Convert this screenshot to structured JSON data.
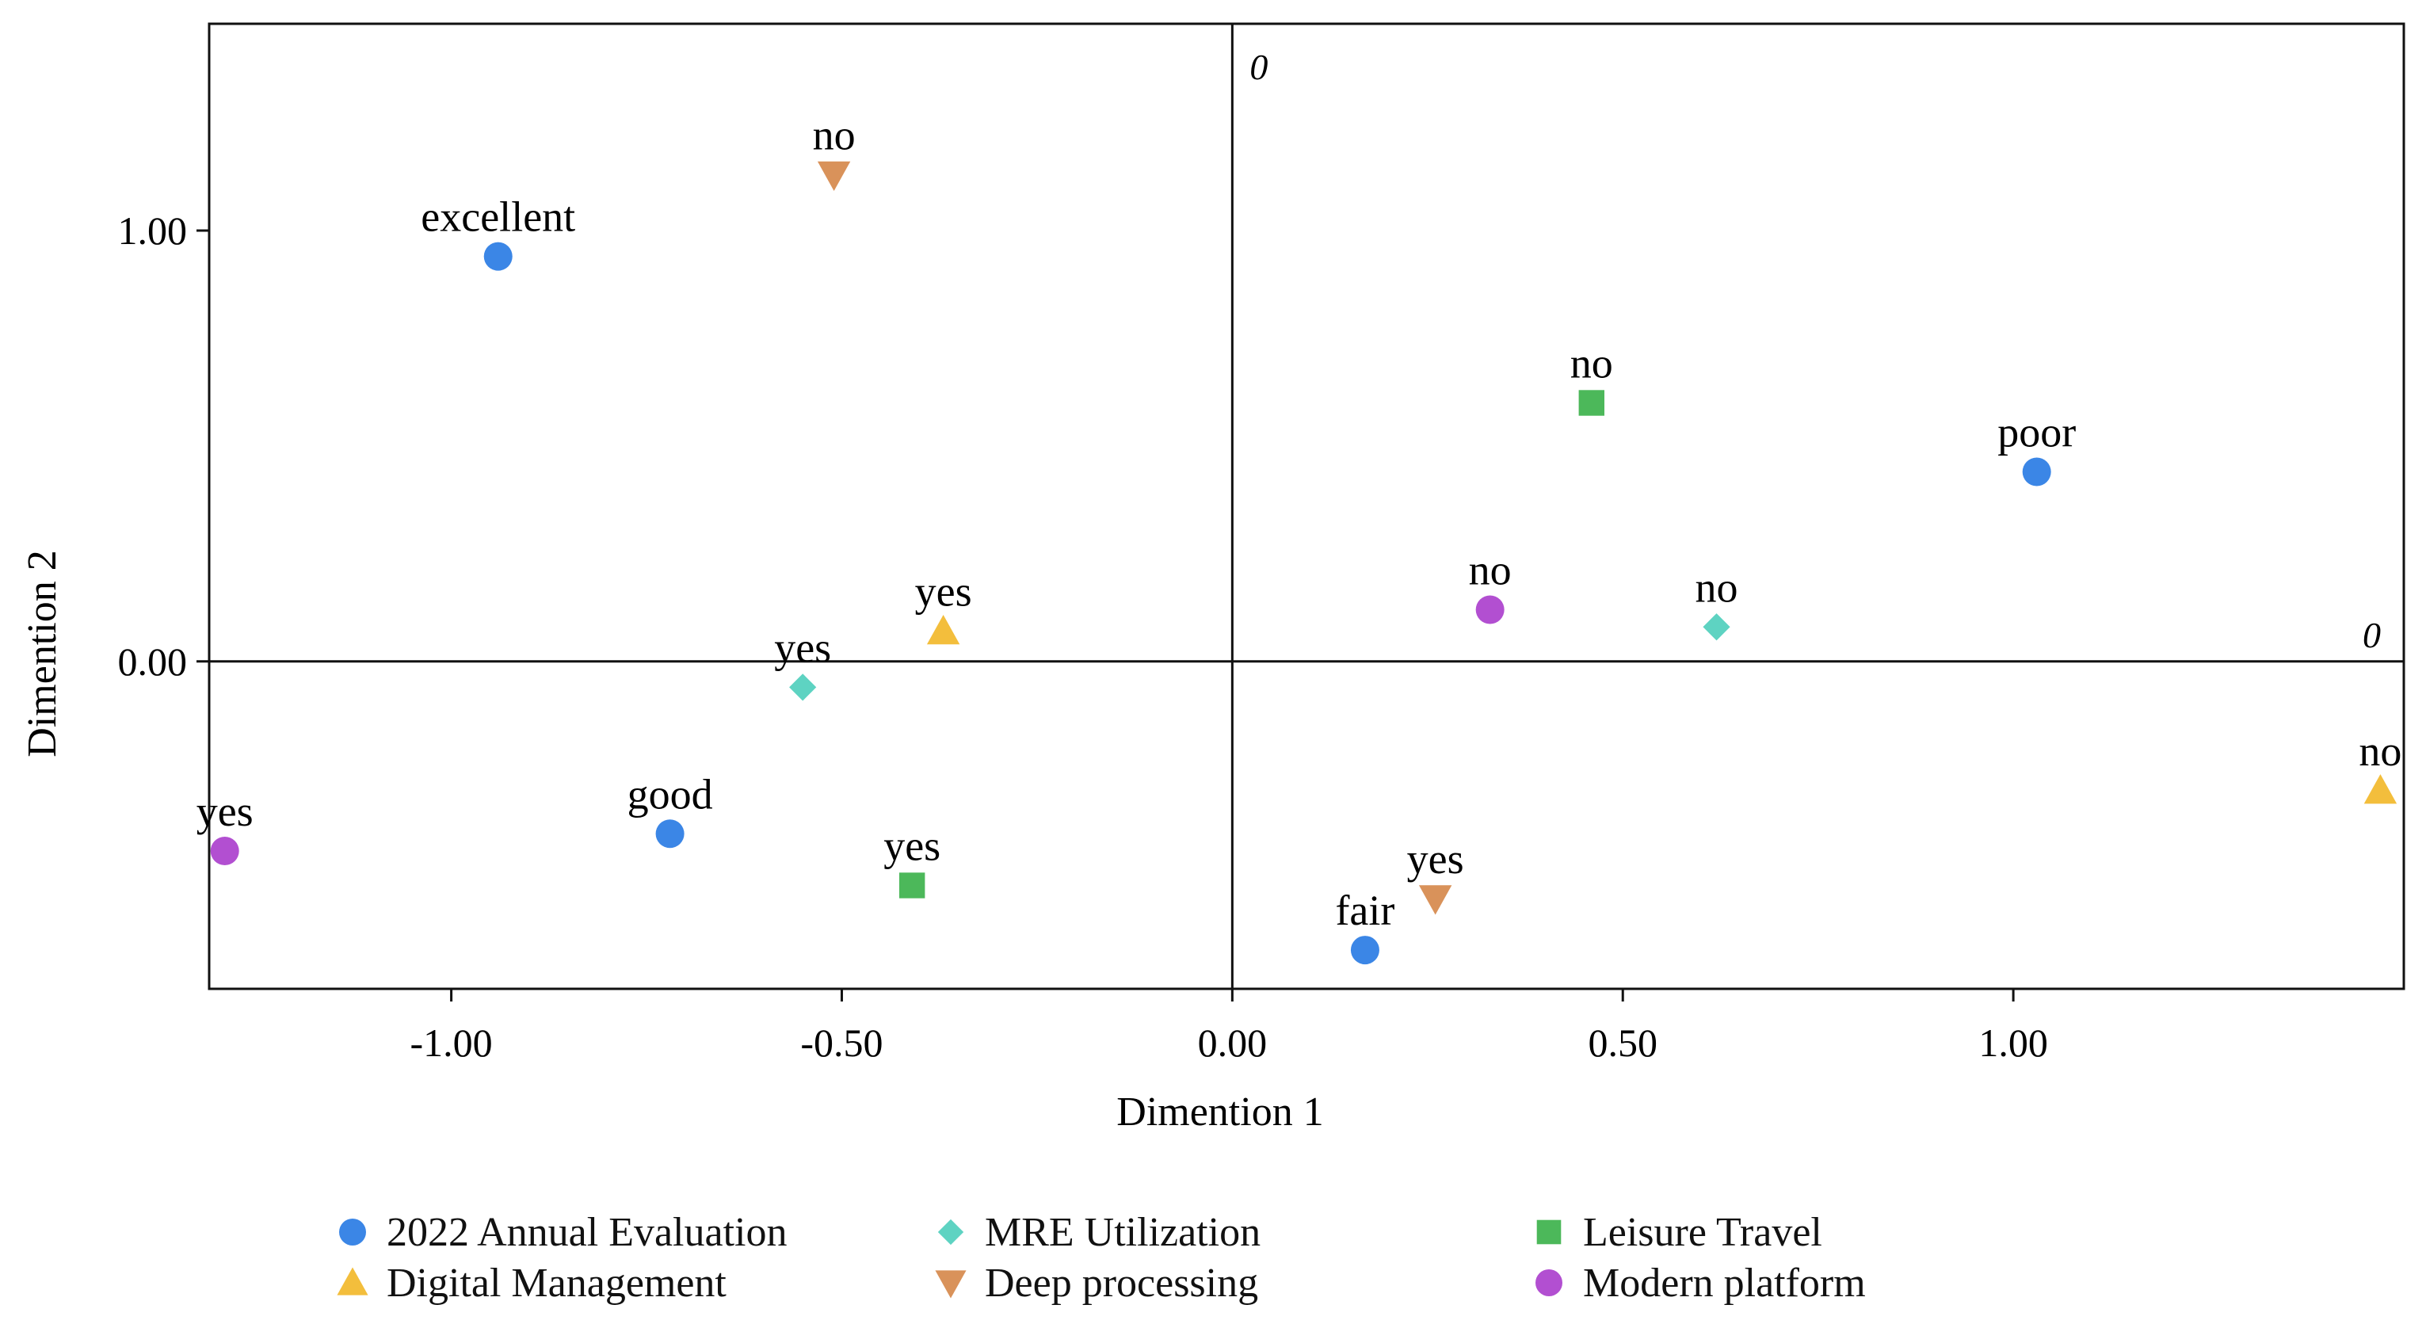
{
  "chart_data": {
    "type": "scatter",
    "title": "",
    "xlabel": "Dimention 1",
    "ylabel": "Dimention 2",
    "xlim": [
      -1.31,
      1.5
    ],
    "ylim": [
      -0.76,
      1.48
    ],
    "xticks": [
      -1.0,
      -0.5,
      0.0,
      0.5,
      1.0
    ],
    "xtick_labels": [
      "-1.00",
      "-0.50",
      "0.00",
      "0.50",
      "1.00"
    ],
    "yticks": [
      0.0,
      1.0
    ],
    "ytick_labels": [
      "0.00",
      "1.00"
    ],
    "reference_lines": {
      "x": 0,
      "y": 0,
      "x_line_label": "0",
      "y_line_label": "0"
    },
    "series": [
      {
        "name": "2022 Annual Evaluation",
        "marker": "circle",
        "color": "#3B86E6",
        "points": [
          {
            "x": -0.94,
            "y": 0.94,
            "label": "excellent"
          },
          {
            "x": -0.72,
            "y": -0.4,
            "label": "good"
          },
          {
            "x": 0.17,
            "y": -0.67,
            "label": "fair"
          },
          {
            "x": 1.03,
            "y": 0.44,
            "label": "poor"
          }
        ]
      },
      {
        "name": "MRE Utilization",
        "marker": "diamond",
        "color": "#5ED3C2",
        "points": [
          {
            "x": -0.55,
            "y": -0.06,
            "label": "yes"
          },
          {
            "x": 0.62,
            "y": 0.08,
            "label": "no"
          }
        ]
      },
      {
        "name": "Leisure Travel",
        "marker": "square",
        "color": "#4CB85A",
        "points": [
          {
            "x": -0.41,
            "y": -0.52,
            "label": "yes"
          },
          {
            "x": 0.46,
            "y": 0.6,
            "label": "no"
          }
        ]
      },
      {
        "name": "Digital Management",
        "marker": "triangle-up",
        "color": "#F3BE3C",
        "points": [
          {
            "x": -0.37,
            "y": 0.07,
            "label": "yes"
          },
          {
            "x": 1.47,
            "y": -0.3,
            "label": "no"
          }
        ]
      },
      {
        "name": "Deep processing",
        "marker": "triangle-down",
        "color": "#D9925A",
        "points": [
          {
            "x": 0.26,
            "y": -0.55,
            "label": "yes"
          },
          {
            "x": -0.51,
            "y": 1.13,
            "label": "no"
          }
        ]
      },
      {
        "name": "Modern platform",
        "marker": "circle",
        "color": "#B24FD1",
        "points": [
          {
            "x": -1.29,
            "y": -0.44,
            "label": "yes"
          },
          {
            "x": 0.33,
            "y": 0.12,
            "label": "no"
          }
        ]
      }
    ],
    "legend": {
      "position": "bottom",
      "columns": [
        [
          "2022 Annual Evaluation",
          "Digital Management"
        ],
        [
          "MRE Utilization",
          "Deep processing"
        ],
        [
          "Leisure Travel",
          "Modern platform"
        ]
      ]
    },
    "grid": false
  }
}
